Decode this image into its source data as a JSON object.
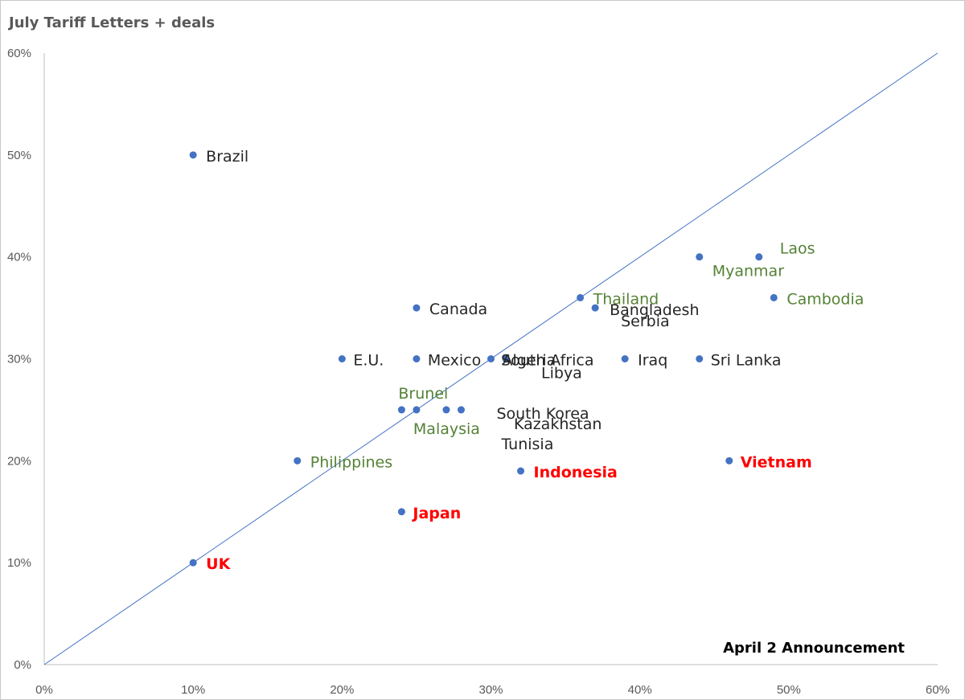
{
  "chart_data": {
    "type": "scatter",
    "title": "July Tariff Letters + deals",
    "xlabel": "April 2 Announcement",
    "ylabel": "",
    "xlim": [
      0,
      60
    ],
    "ylim": [
      0,
      60
    ],
    "x_ticks": [
      "0%",
      "10%",
      "20%",
      "30%",
      "40%",
      "50%",
      "60%"
    ],
    "y_ticks": [
      "0%",
      "10%",
      "20%",
      "30%",
      "40%",
      "50%",
      "60%"
    ],
    "reference_line": {
      "from": [
        0,
        0
      ],
      "to": [
        60,
        60
      ]
    },
    "grid": false,
    "point_color": "#4472C4",
    "colors": {
      "black": "#262626",
      "green": "#548235",
      "red": "#FF0000"
    },
    "points": [
      {
        "label": "Brazil",
        "x": 10,
        "y": 50,
        "color": "black"
      },
      {
        "label": "Laos",
        "x": 48,
        "y": 40,
        "color": "green"
      },
      {
        "label": "Myanmar",
        "x": 44,
        "y": 40,
        "color": "green"
      },
      {
        "label": "Cambodia",
        "x": 49,
        "y": 36,
        "color": "green"
      },
      {
        "label": "Thailand",
        "x": 36,
        "y": 36,
        "color": "green"
      },
      {
        "label": "Bangladesh",
        "x": 37,
        "y": 35,
        "color": "black"
      },
      {
        "label": "Serbia",
        "x": 37,
        "y": 35,
        "color": "black"
      },
      {
        "label": "Canada",
        "x": 25,
        "y": 35,
        "color": "black"
      },
      {
        "label": "E.U.",
        "x": 20,
        "y": 30,
        "color": "black"
      },
      {
        "label": "Mexico",
        "x": 25,
        "y": 30,
        "color": "black"
      },
      {
        "label": "Algeria",
        "x": 30,
        "y": 30,
        "color": "black"
      },
      {
        "label": "South Africa",
        "x": 31,
        "y": 30,
        "color": "black"
      },
      {
        "label": "Iraq",
        "x": 39,
        "y": 30,
        "color": "black"
      },
      {
        "label": "Sri Lanka",
        "x": 44,
        "y": 30,
        "color": "black"
      },
      {
        "label": "Libya",
        "x": 31,
        "y": 30,
        "color": "black"
      },
      {
        "label": "Kazakhstan",
        "x": 27,
        "y": 25,
        "color": "black"
      },
      {
        "label": "Brunei",
        "x": 24,
        "y": 25,
        "color": "green"
      },
      {
        "label": "Malaysia",
        "x": 25,
        "y": 25,
        "color": "green"
      },
      {
        "label": "South Korea",
        "x": 28,
        "y": 25,
        "color": "black"
      },
      {
        "label": "Tunisia",
        "x": 28,
        "y": 25,
        "color": "black"
      },
      {
        "label": "Philippines",
        "x": 17,
        "y": 20,
        "color": "green"
      },
      {
        "label": "Indonesia",
        "x": 32,
        "y": 19,
        "color": "red",
        "bold": true
      },
      {
        "label": "Vietnam",
        "x": 46,
        "y": 20,
        "color": "red",
        "bold": true
      },
      {
        "label": "Japan",
        "x": 24,
        "y": 15,
        "color": "red",
        "bold": true
      },
      {
        "label": "UK",
        "x": 10,
        "y": 10,
        "color": "red",
        "bold": true
      }
    ]
  }
}
